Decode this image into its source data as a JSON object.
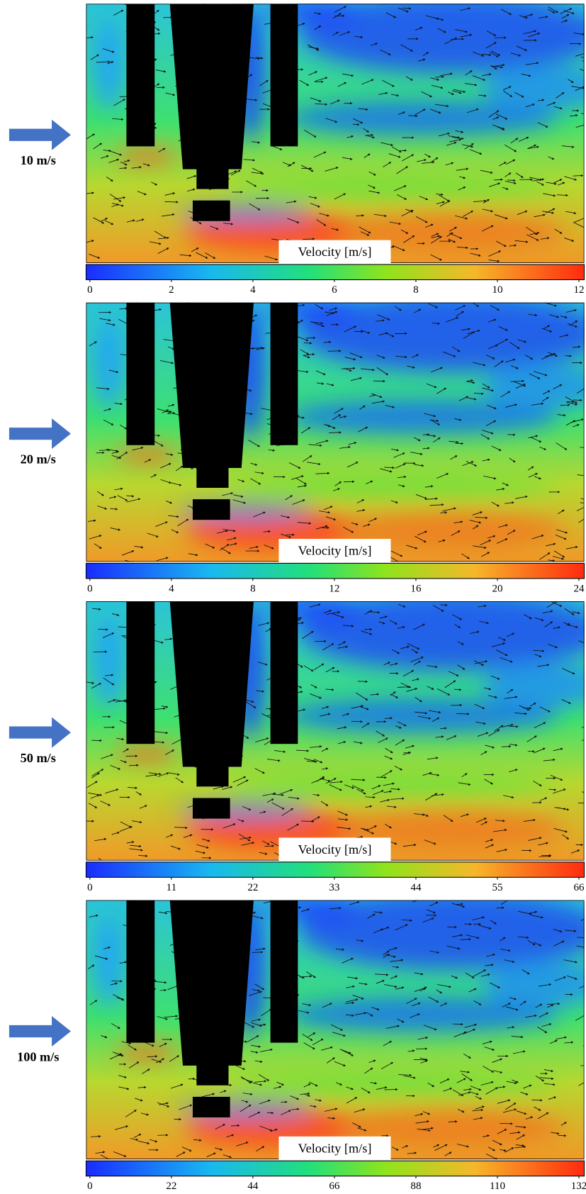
{
  "panels": [
    {
      "inflow": "10 m/s",
      "colorbar": {
        "title": "Velocity [m/s]",
        "lim": [
          0,
          12
        ],
        "ticks": [
          0,
          2,
          4,
          6,
          8,
          10,
          12
        ]
      }
    },
    {
      "inflow": "20 m/s",
      "colorbar": {
        "title": "Velocity [m/s]",
        "lim": [
          0,
          24
        ],
        "ticks": [
          0,
          4,
          8,
          12,
          16,
          20,
          24
        ]
      }
    },
    {
      "inflow": "50 m/s",
      "colorbar": {
        "title": "Velocity [m/s]",
        "lim": [
          0,
          66
        ],
        "ticks": [
          0,
          11,
          22,
          33,
          44,
          55,
          66
        ]
      }
    },
    {
      "inflow": "100 m/s",
      "colorbar": {
        "title": "Velocity [m/s]",
        "lim": [
          0,
          132
        ],
        "ticks": [
          0,
          22,
          44,
          66,
          88,
          110,
          132
        ]
      }
    }
  ]
}
